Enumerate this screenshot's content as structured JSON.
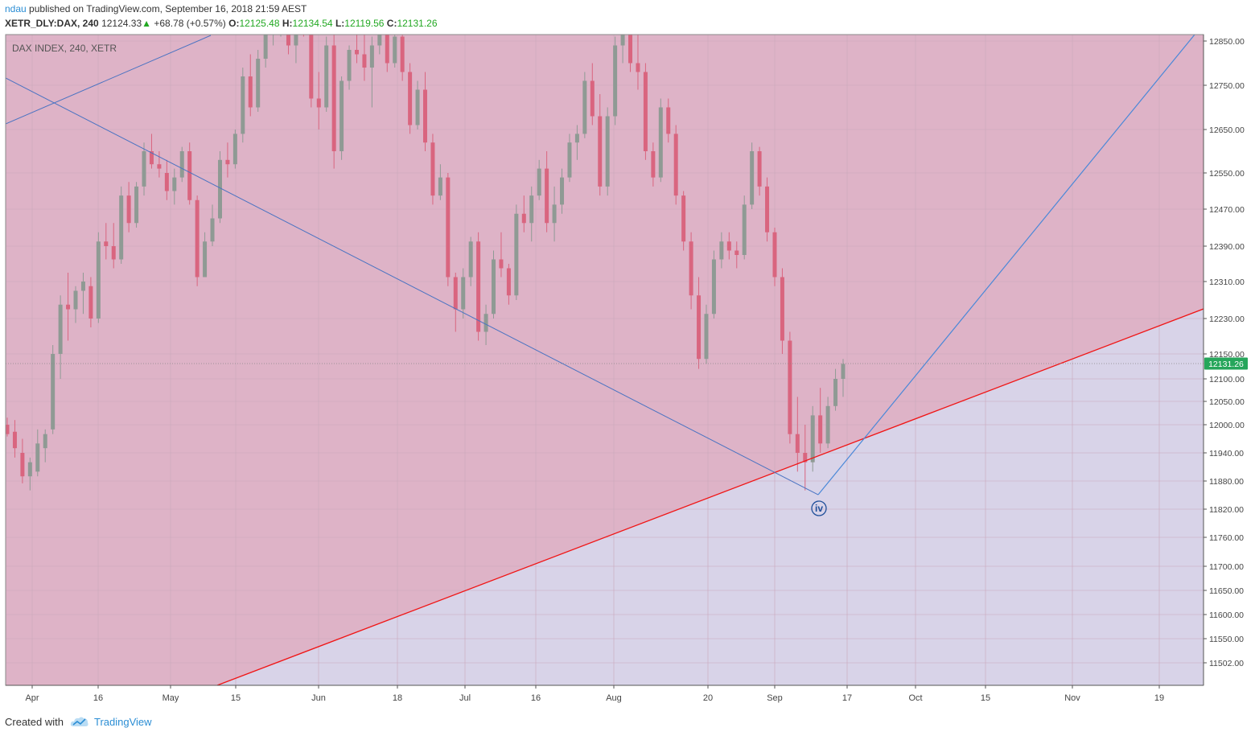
{
  "header": {
    "author": "ndau",
    "published_text": "published on TradingView.com, September 16, 2018 21:59 AEST",
    "symbol_interval": "XETR_DLY:DAX, 240",
    "last_price": "12124.33",
    "change_arrow": "▲",
    "change": "+68.78 (+0.57%)",
    "open_label": "O:",
    "open": "12125.48",
    "high_label": "H:",
    "high": "12134.54",
    "low_label": "L:",
    "low": "12119.56",
    "close_label": "C:",
    "close": "12131.26"
  },
  "footer": {
    "created_with": "Created with",
    "brand": "TradingView",
    "logo_icon": "tradingview-cloud-icon"
  },
  "chart_data": {
    "type": "candlestick",
    "title": "DAX INDEX, 240, XETR",
    "price_scale": {
      "labels": [
        "12850.00",
        "12750.00",
        "12650.00",
        "12550.00",
        "12470.00",
        "12390.00",
        "12310.00",
        "12230.00",
        "12150.00",
        "12100.00",
        "12050.00",
        "12000.00",
        "11940.00",
        "11880.00",
        "11820.00",
        "11760.00",
        "11700.00",
        "11650.00",
        "11600.00",
        "11550.00",
        "11502.00"
      ],
      "current_price_label": "12131.26"
    },
    "time_axis": {
      "labels": [
        "Apr",
        "16",
        "May",
        "15",
        "Jun",
        "18",
        "Jul",
        "16",
        "Aug",
        "20",
        "Sep",
        "17",
        "Oct",
        "15",
        "Nov",
        "19"
      ]
    },
    "wave_label": "iv",
    "colors": {
      "upper_zone": "#deb3c7",
      "lower_zone": "#d8d3e8",
      "up_candle": "#8f9a94",
      "down_candle": "#d9657f",
      "support_line": "#f01515",
      "trend_lines": "#4a73c2",
      "projection_line": "#4a88d8",
      "price_tag": "#26a65b"
    },
    "candles_ohlc": [
      [
        12000,
        12015,
        11975,
        11980
      ],
      [
        11985,
        12010,
        11930,
        11950
      ],
      [
        11940,
        11970,
        11875,
        11890
      ],
      [
        11890,
        11930,
        11860,
        11920
      ],
      [
        11900,
        11990,
        11890,
        11960
      ],
      [
        11950,
        11990,
        11920,
        11980
      ],
      [
        11990,
        12170,
        11980,
        12150
      ],
      [
        12150,
        12280,
        12100,
        12260
      ],
      [
        12260,
        12330,
        12180,
        12250
      ],
      [
        12250,
        12300,
        12220,
        12290
      ],
      [
        12290,
        12330,
        12240,
        12310
      ],
      [
        12300,
        12320,
        12210,
        12230
      ],
      [
        12230,
        12420,
        12220,
        12400
      ],
      [
        12400,
        12440,
        12360,
        12390
      ],
      [
        12390,
        12440,
        12340,
        12360
      ],
      [
        12360,
        12520,
        12350,
        12500
      ],
      [
        12500,
        12530,
        12420,
        12440
      ],
      [
        12440,
        12530,
        12430,
        12520
      ],
      [
        12520,
        12620,
        12500,
        12600
      ],
      [
        12600,
        12640,
        12560,
        12570
      ],
      [
        12570,
        12600,
        12540,
        12560
      ],
      [
        12550,
        12580,
        12490,
        12510
      ],
      [
        12510,
        12560,
        12480,
        12540
      ],
      [
        12540,
        12610,
        12530,
        12600
      ],
      [
        12600,
        12620,
        12480,
        12490
      ],
      [
        12490,
        12500,
        12300,
        12320
      ],
      [
        12320,
        12420,
        12320,
        12400
      ],
      [
        12400,
        12480,
        12390,
        12450
      ],
      [
        12450,
        12600,
        12440,
        12580
      ],
      [
        12580,
        12620,
        12540,
        12570
      ],
      [
        12570,
        12650,
        12560,
        12640
      ],
      [
        12640,
        12790,
        12620,
        12770
      ],
      [
        12770,
        12820,
        12680,
        12700
      ],
      [
        12700,
        12830,
        12690,
        12810
      ],
      [
        12810,
        12880,
        12790,
        12870
      ],
      [
        12870,
        12920,
        12840,
        12880
      ],
      [
        12880,
        12930,
        12860,
        12900
      ],
      [
        12900,
        12940,
        12820,
        12840
      ],
      [
        12840,
        12920,
        12800,
        12910
      ],
      [
        12910,
        12940,
        12860,
        12880
      ],
      [
        12880,
        12900,
        12700,
        12720
      ],
      [
        12720,
        12780,
        12650,
        12700
      ],
      [
        12700,
        12860,
        12690,
        12840
      ],
      [
        12840,
        12870,
        12560,
        12600
      ],
      [
        12600,
        12770,
        12580,
        12760
      ],
      [
        12760,
        12840,
        12740,
        12830
      ],
      [
        12830,
        12880,
        12800,
        12820
      ],
      [
        12820,
        12880,
        12760,
        12790
      ],
      [
        12790,
        12860,
        12700,
        12840
      ],
      [
        12840,
        12900,
        12820,
        12880
      ],
      [
        12880,
        12900,
        12780,
        12800
      ],
      [
        12800,
        12880,
        12790,
        12860
      ],
      [
        12860,
        12880,
        12760,
        12780
      ],
      [
        12780,
        12800,
        12640,
        12660
      ],
      [
        12660,
        12760,
        12650,
        12740
      ],
      [
        12740,
        12780,
        12600,
        12620
      ],
      [
        12620,
        12640,
        12480,
        12500
      ],
      [
        12500,
        12570,
        12490,
        12540
      ],
      [
        12540,
        12550,
        12300,
        12320
      ],
      [
        12320,
        12330,
        12200,
        12250
      ],
      [
        12250,
        12340,
        12230,
        12320
      ],
      [
        12320,
        12410,
        12300,
        12400
      ],
      [
        12400,
        12420,
        12180,
        12200
      ],
      [
        12200,
        12260,
        12170,
        12240
      ],
      [
        12240,
        12380,
        12230,
        12360
      ],
      [
        12360,
        12420,
        12320,
        12340
      ],
      [
        12340,
        12350,
        12260,
        12280
      ],
      [
        12280,
        12480,
        12270,
        12460
      ],
      [
        12460,
        12500,
        12420,
        12440
      ],
      [
        12440,
        12520,
        12400,
        12500
      ],
      [
        12500,
        12580,
        12490,
        12560
      ],
      [
        12560,
        12600,
        12420,
        12440
      ],
      [
        12440,
        12520,
        12400,
        12480
      ],
      [
        12480,
        12560,
        12460,
        12540
      ],
      [
        12540,
        12640,
        12530,
        12620
      ],
      [
        12620,
        12660,
        12580,
        12640
      ],
      [
        12640,
        12780,
        12630,
        12760
      ],
      [
        12760,
        12800,
        12660,
        12680
      ],
      [
        12680,
        12730,
        12500,
        12520
      ],
      [
        12520,
        12700,
        12500,
        12680
      ],
      [
        12680,
        12860,
        12660,
        12840
      ],
      [
        12840,
        12900,
        12800,
        12880
      ],
      [
        12880,
        12920,
        12780,
        12800
      ],
      [
        12800,
        12880,
        12740,
        12780
      ],
      [
        12780,
        12800,
        12580,
        12600
      ],
      [
        12600,
        12620,
        12520,
        12540
      ],
      [
        12540,
        12720,
        12530,
        12700
      ],
      [
        12700,
        12720,
        12620,
        12640
      ],
      [
        12640,
        12660,
        12480,
        12500
      ],
      [
        12500,
        12510,
        12380,
        12400
      ],
      [
        12400,
        12420,
        12250,
        12280
      ],
      [
        12280,
        12320,
        12120,
        12140
      ],
      [
        12140,
        12260,
        12130,
        12240
      ],
      [
        12240,
        12380,
        12230,
        12360
      ],
      [
        12360,
        12420,
        12340,
        12400
      ],
      [
        12400,
        12420,
        12360,
        12380
      ],
      [
        12380,
        12400,
        12340,
        12370
      ],
      [
        12370,
        12500,
        12360,
        12480
      ],
      [
        12480,
        12620,
        12470,
        12600
      ],
      [
        12600,
        12610,
        12500,
        12520
      ],
      [
        12520,
        12540,
        12400,
        12420
      ],
      [
        12420,
        12430,
        12300,
        12320
      ],
      [
        12320,
        12340,
        12150,
        12180
      ],
      [
        12180,
        12200,
        11960,
        11980
      ],
      [
        11980,
        12060,
        11900,
        11940
      ],
      [
        11940,
        12000,
        11860,
        11920
      ],
      [
        11920,
        12040,
        11900,
        12020
      ],
      [
        12020,
        12080,
        11940,
        11960
      ],
      [
        11960,
        12060,
        11950,
        12040
      ],
      [
        12040,
        12120,
        12030,
        12100
      ],
      [
        12100,
        12140,
        12060,
        12130
      ]
    ]
  }
}
